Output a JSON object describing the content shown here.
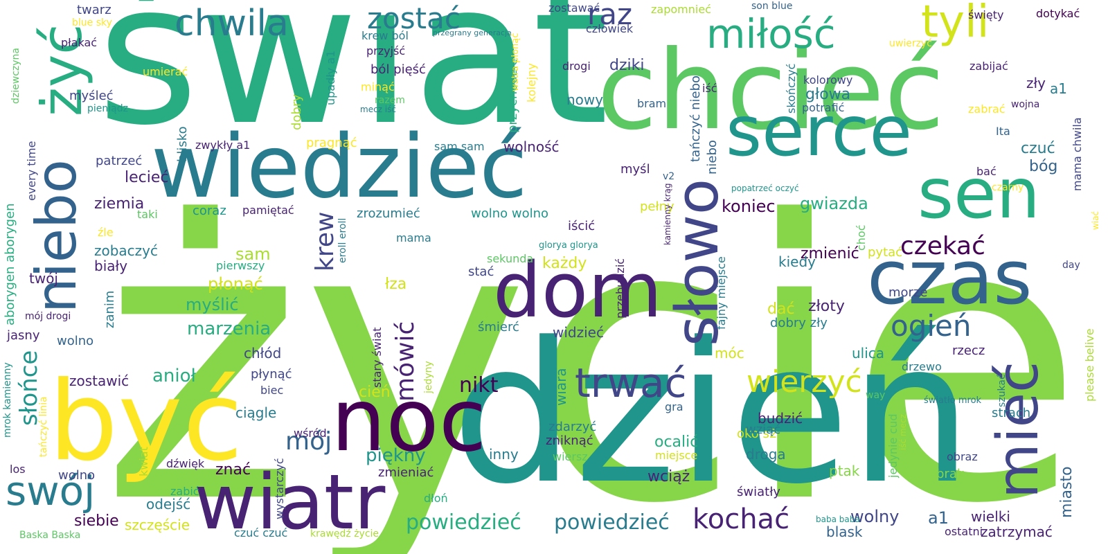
{
  "palette": {
    "c0": "#440154",
    "c1": "#482374",
    "c2": "#404688",
    "c3": "#33638d",
    "c4": "#287c8e",
    "c5": "#1f958b",
    "c6": "#27ad81",
    "c7": "#5cc863",
    "c8": "#87d549",
    "c9": "#aadc32",
    "c10": "#d2e21b",
    "c11": "#fde725"
  },
  "words": [
    {
      "text": "życie",
      "c": "c8"
    },
    {
      "text": "świat",
      "c": "c6"
    },
    {
      "text": "dzień",
      "c": "c5"
    },
    {
      "text": "chcieć",
      "c": "c7"
    },
    {
      "text": "być",
      "c": "c11"
    },
    {
      "text": "wiedzieć",
      "c": "c4"
    },
    {
      "text": "noc",
      "c": "c0"
    },
    {
      "text": "wiatr",
      "c": "c1"
    },
    {
      "text": "dom",
      "c": "c1"
    },
    {
      "text": "czas",
      "c": "c3"
    },
    {
      "text": "serce",
      "c": "c5"
    },
    {
      "text": "sen",
      "c": "c6"
    },
    {
      "text": "słowo",
      "c": "c2"
    },
    {
      "text": "niebo",
      "c": "c3"
    },
    {
      "text": "żyć",
      "c": "c6"
    },
    {
      "text": "mieć",
      "c": "c2"
    },
    {
      "text": "miłość",
      "c": "c6"
    },
    {
      "text": "tyli",
      "c": "c10"
    },
    {
      "text": "chwila",
      "c": "c4"
    },
    {
      "text": "zostać",
      "c": "c4"
    },
    {
      "text": "raz",
      "c": "c2"
    },
    {
      "text": "trwać",
      "c": "c2"
    },
    {
      "text": "wierzyć",
      "c": "c10"
    },
    {
      "text": "swój",
      "c": "c4"
    },
    {
      "text": "słońce",
      "c": "c5"
    },
    {
      "text": "kochać",
      "c": "c1"
    },
    {
      "text": "ogień",
      "c": "c3"
    },
    {
      "text": "mówić",
      "c": "c1"
    },
    {
      "text": "krew",
      "c": "c2"
    },
    {
      "text": "czekać",
      "c": "c0"
    },
    {
      "text": "mój",
      "c": "c3"
    },
    {
      "text": "powiedzieć",
      "c": "c6"
    },
    {
      "text": "powiedzieć",
      "c": "c4"
    },
    {
      "text": "nikt",
      "c": "c0"
    },
    {
      "text": "anioł",
      "c": "c6"
    },
    {
      "text": "piękny",
      "c": "c5"
    },
    {
      "text": "koniec",
      "c": "c0"
    },
    {
      "text": "gwiazda",
      "c": "c6"
    },
    {
      "text": "zmienić",
      "c": "c0"
    },
    {
      "text": "każdy",
      "c": "c10"
    },
    {
      "text": "marzenia",
      "c": "c6"
    },
    {
      "text": "myślić",
      "c": "c6"
    },
    {
      "text": "płonąć",
      "c": "c10"
    },
    {
      "text": "sam",
      "c": "c9"
    },
    {
      "text": "lecieć",
      "c": "c1"
    },
    {
      "text": "ziemia",
      "c": "c1"
    },
    {
      "text": "zobaczyć",
      "c": "c4"
    },
    {
      "text": "biały",
      "c": "c1"
    },
    {
      "text": "twój",
      "c": "c1"
    },
    {
      "text": "wolny",
      "c": "c2"
    },
    {
      "text": "a1",
      "c": "c3"
    },
    {
      "text": "wielki",
      "c": "c1"
    },
    {
      "text": "miasto",
      "c": "c3"
    },
    {
      "text": "złoty",
      "c": "c1"
    },
    {
      "text": "dać",
      "c": "c10"
    },
    {
      "text": "dobry zły",
      "c": "c4"
    },
    {
      "text": "ulica",
      "c": "c5"
    },
    {
      "text": "rzecz",
      "c": "c1"
    },
    {
      "text": "móc",
      "c": "c10"
    },
    {
      "text": "wiara",
      "c": "c5"
    },
    {
      "text": "widzieć",
      "c": "c2"
    },
    {
      "text": "wciąż",
      "c": "c1"
    },
    {
      "text": "ocalić",
      "c": "c6"
    },
    {
      "text": "droga",
      "c": "c4"
    },
    {
      "text": "oko s2",
      "c": "c10"
    },
    {
      "text": "inny",
      "c": "c4"
    },
    {
      "text": "znać",
      "c": "c0"
    },
    {
      "text": "zmieniać",
      "c": "c1"
    },
    {
      "text": "odejść",
      "c": "c4"
    },
    {
      "text": "siebie",
      "c": "c0"
    },
    {
      "text": "szczęście",
      "c": "c10"
    },
    {
      "text": "zostawić",
      "c": "c1"
    },
    {
      "text": "chłód",
      "c": "c2"
    },
    {
      "text": "płynąć",
      "c": "c2"
    },
    {
      "text": "ciągle",
      "c": "c4"
    },
    {
      "text": "cień",
      "c": "c10"
    },
    {
      "text": "łza",
      "c": "c10"
    },
    {
      "text": "stać",
      "c": "c2"
    },
    {
      "text": "śmierć",
      "c": "c4"
    },
    {
      "text": "czuć",
      "c": "c4"
    },
    {
      "text": "bóg",
      "c": "c3"
    },
    {
      "text": "zły",
      "c": "c1"
    },
    {
      "text": "głowa",
      "c": "c4"
    },
    {
      "text": "dziki",
      "c": "c2"
    },
    {
      "text": "nowy",
      "c": "c4"
    },
    {
      "text": "wolność",
      "c": "c1"
    },
    {
      "text": "myśl",
      "c": "c1"
    },
    {
      "text": "pełny",
      "c": "c10"
    },
    {
      "text": "kiedy",
      "c": "c4"
    },
    {
      "text": "morze",
      "c": "c2"
    },
    {
      "text": "wolno",
      "c": "c3"
    },
    {
      "text": "jasny",
      "c": "c1"
    },
    {
      "text": "ptak",
      "c": "c8"
    },
    {
      "text": "brak",
      "c": "c8"
    },
    {
      "text": "strach",
      "c": "c4"
    },
    {
      "text": "obraz",
      "c": "c2"
    },
    {
      "text": "ostatni",
      "c": "c1"
    },
    {
      "text": "zatrzymać",
      "c": "c1"
    },
    {
      "text": "blask",
      "c": "c3"
    },
    {
      "text": "budzić",
      "c": "c1"
    },
    {
      "text": "wziąć",
      "c": "c4"
    },
    {
      "text": "zdarzyć",
      "c": "c4"
    },
    {
      "text": "zniknąć",
      "c": "c1"
    },
    {
      "text": "wiersz",
      "c": "c7"
    },
    {
      "text": "miejsce",
      "c": "c10"
    },
    {
      "text": "światły",
      "c": "c1"
    },
    {
      "text": "gra",
      "c": "c3"
    },
    {
      "text": "drzewo",
      "c": "c4"
    },
    {
      "text": "pytać",
      "c": "c10"
    },
    {
      "text": "mama",
      "c": "c4"
    },
    {
      "text": "iścić",
      "c": "c1"
    },
    {
      "text": "zrozumieć",
      "c": "c4"
    },
    {
      "text": "wolno wolno",
      "c": "c5"
    },
    {
      "text": "pamiętać",
      "c": "c1"
    },
    {
      "text": "coraz",
      "c": "c5"
    },
    {
      "text": "taki",
      "c": "c7"
    },
    {
      "text": "pierwszy",
      "c": "c6"
    },
    {
      "text": "zanim",
      "c": "c4"
    },
    {
      "text": "wolno",
      "c": "c2"
    },
    {
      "text": "los",
      "c": "c1"
    },
    {
      "text": "biec",
      "c": "c2"
    },
    {
      "text": "wśród",
      "c": "c1"
    },
    {
      "text": "dźwięk",
      "c": "c1"
    },
    {
      "text": "zabić",
      "c": "c6"
    },
    {
      "text": "czuć czuć",
      "c": "c4"
    },
    {
      "text": "krawędź życie",
      "c": "c9"
    },
    {
      "text": "Baska Baska",
      "c": "c7"
    },
    {
      "text": "dłoń",
      "c": "c6"
    },
    {
      "text": "sekunda",
      "c": "c7"
    },
    {
      "text": "glorya glorya",
      "c": "c5"
    },
    {
      "text": "zwykły a1",
      "c": "c1"
    },
    {
      "text": "sam sam",
      "c": "c4"
    },
    {
      "text": "pragnąć",
      "c": "c11"
    },
    {
      "text": "patrzeć",
      "c": "c2"
    },
    {
      "text": "zostawać",
      "c": "c2"
    },
    {
      "text": "zapomnieć",
      "c": "c9"
    },
    {
      "text": "son blue",
      "c": "c3"
    },
    {
      "text": "święty",
      "c": "c1"
    },
    {
      "text": "dotykać",
      "c": "c0"
    },
    {
      "text": "człowiek",
      "c": "c2"
    },
    {
      "text": "krew ból",
      "c": "c4"
    },
    {
      "text": "przegrany generacja",
      "c": "c4"
    },
    {
      "text": "przyjść",
      "c": "c1"
    },
    {
      "text": "ból pięść",
      "c": "c1"
    },
    {
      "text": "minąć",
      "c": "c11"
    },
    {
      "text": "razem",
      "c": "c7"
    },
    {
      "text": "mecz iść",
      "c": "c4"
    },
    {
      "text": "twarz",
      "c": "c2"
    },
    {
      "text": "blue sky",
      "c": "c11"
    },
    {
      "text": "płakać",
      "c": "c1"
    },
    {
      "text": "umierać",
      "c": "c11"
    },
    {
      "text": "myśleć",
      "c": "c2"
    },
    {
      "text": "pieniądz",
      "c": "c5"
    },
    {
      "text": "drogi",
      "c": "c1"
    },
    {
      "text": "bram",
      "c": "c3"
    },
    {
      "text": "kolorowy",
      "c": "c2"
    },
    {
      "text": "potrafić",
      "c": "c3"
    },
    {
      "text": "uwierzyć",
      "c": "c11"
    },
    {
      "text": "zabijać",
      "c": "c1"
    },
    {
      "text": "zabrać",
      "c": "c11"
    },
    {
      "text": "wojna",
      "c": "c1"
    },
    {
      "text": "Ita",
      "c": "c3"
    },
    {
      "text": "bać",
      "c": "c1"
    },
    {
      "text": "czarny",
      "c": "c11"
    },
    {
      "text": "popatrzeć oczyć",
      "c": "c5"
    },
    {
      "text": "v2",
      "c": "c3"
    },
    {
      "text": "day",
      "c": "c2"
    },
    {
      "text": "iść",
      "c": "c1"
    },
    {
      "text": "way",
      "c": "c7"
    },
    {
      "text": "światło mrok",
      "c": "c4"
    },
    {
      "text": "baba baba",
      "c": "c5"
    },
    {
      "text": "mój drogi",
      "c": "c1"
    },
    {
      "text": "źle",
      "c": "c11"
    },
    {
      "text": "niebo",
      "c": "c3"
    },
    {
      "text": "tańczyć niebo",
      "c": "c3"
    },
    {
      "text": "skończyć",
      "c": "c4"
    },
    {
      "text": "blisko",
      "c": "c4"
    },
    {
      "text": "upadły a1",
      "c": "c5"
    },
    {
      "text": "dobry",
      "c": "c9"
    },
    {
      "text": "przychodzić",
      "c": "c6"
    },
    {
      "text": "watra płonąć",
      "c": "c11"
    },
    {
      "text": "kolejny",
      "c": "c11"
    },
    {
      "text": "dziewczyna",
      "c": "c7"
    },
    {
      "text": "every time",
      "c": "c2"
    },
    {
      "text": "aborygen aborygen",
      "c": "c6"
    },
    {
      "text": "mrok kamienny",
      "c": "c5"
    },
    {
      "text": "tańczyć linia",
      "c": "c11"
    },
    {
      "text": "kwiat",
      "c": "c9"
    },
    {
      "text": "wystarczyć",
      "c": "c2"
    },
    {
      "text": "eroll eroll",
      "c": "c4"
    },
    {
      "text": "stary świat",
      "c": "c1"
    },
    {
      "text": "jedyny",
      "c": "c9"
    },
    {
      "text": "przebudzić",
      "c": "c1"
    },
    {
      "text": "fajny miejsce",
      "c": "c4"
    },
    {
      "text": "kamienny krąg",
      "c": "c1"
    },
    {
      "text": "choć",
      "c": "c7"
    },
    {
      "text": "jedynie cud",
      "c": "c7"
    },
    {
      "text": "iść mecz",
      "c": "c9"
    },
    {
      "text": "szukać",
      "c": "c4"
    },
    {
      "text": "please belive",
      "c": "c9"
    },
    {
      "text": "wiać",
      "c": "c11"
    },
    {
      "text": "mama chwila",
      "c": "c2"
    },
    {
      "text": "a1",
      "c": "c4"
    }
  ]
}
